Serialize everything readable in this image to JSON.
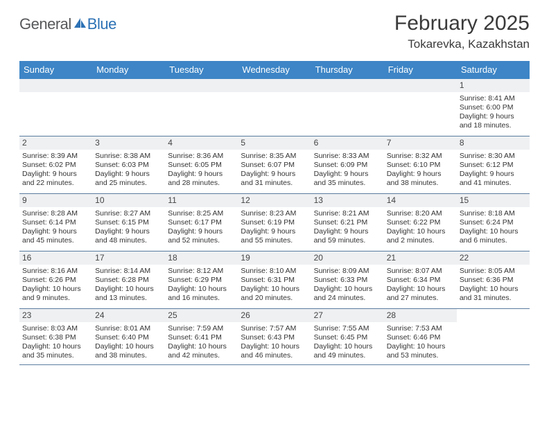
{
  "logo": {
    "general": "General",
    "blue": "Blue"
  },
  "header": {
    "month_title": "February 2025",
    "location": "Tokarevka, Kazakhstan"
  },
  "colors": {
    "head_bg": "#3d85c6",
    "head_fg": "#ffffff",
    "rule": "#5a7ca0",
    "daynum_bg": "#eef0f2",
    "logo_gray": "#57585a",
    "logo_blue": "#2d72b5"
  },
  "daynames": [
    "Sunday",
    "Monday",
    "Tuesday",
    "Wednesday",
    "Thursday",
    "Friday",
    "Saturday"
  ],
  "weeks": [
    [
      null,
      null,
      null,
      null,
      null,
      null,
      {
        "n": "1",
        "sunrise": "Sunrise: 8:41 AM",
        "sunset": "Sunset: 6:00 PM",
        "daylight": "Daylight: 9 hours and 18 minutes."
      }
    ],
    [
      {
        "n": "2",
        "sunrise": "Sunrise: 8:39 AM",
        "sunset": "Sunset: 6:02 PM",
        "daylight": "Daylight: 9 hours and 22 minutes."
      },
      {
        "n": "3",
        "sunrise": "Sunrise: 8:38 AM",
        "sunset": "Sunset: 6:03 PM",
        "daylight": "Daylight: 9 hours and 25 minutes."
      },
      {
        "n": "4",
        "sunrise": "Sunrise: 8:36 AM",
        "sunset": "Sunset: 6:05 PM",
        "daylight": "Daylight: 9 hours and 28 minutes."
      },
      {
        "n": "5",
        "sunrise": "Sunrise: 8:35 AM",
        "sunset": "Sunset: 6:07 PM",
        "daylight": "Daylight: 9 hours and 31 minutes."
      },
      {
        "n": "6",
        "sunrise": "Sunrise: 8:33 AM",
        "sunset": "Sunset: 6:09 PM",
        "daylight": "Daylight: 9 hours and 35 minutes."
      },
      {
        "n": "7",
        "sunrise": "Sunrise: 8:32 AM",
        "sunset": "Sunset: 6:10 PM",
        "daylight": "Daylight: 9 hours and 38 minutes."
      },
      {
        "n": "8",
        "sunrise": "Sunrise: 8:30 AM",
        "sunset": "Sunset: 6:12 PM",
        "daylight": "Daylight: 9 hours and 41 minutes."
      }
    ],
    [
      {
        "n": "9",
        "sunrise": "Sunrise: 8:28 AM",
        "sunset": "Sunset: 6:14 PM",
        "daylight": "Daylight: 9 hours and 45 minutes."
      },
      {
        "n": "10",
        "sunrise": "Sunrise: 8:27 AM",
        "sunset": "Sunset: 6:15 PM",
        "daylight": "Daylight: 9 hours and 48 minutes."
      },
      {
        "n": "11",
        "sunrise": "Sunrise: 8:25 AM",
        "sunset": "Sunset: 6:17 PM",
        "daylight": "Daylight: 9 hours and 52 minutes."
      },
      {
        "n": "12",
        "sunrise": "Sunrise: 8:23 AM",
        "sunset": "Sunset: 6:19 PM",
        "daylight": "Daylight: 9 hours and 55 minutes."
      },
      {
        "n": "13",
        "sunrise": "Sunrise: 8:21 AM",
        "sunset": "Sunset: 6:21 PM",
        "daylight": "Daylight: 9 hours and 59 minutes."
      },
      {
        "n": "14",
        "sunrise": "Sunrise: 8:20 AM",
        "sunset": "Sunset: 6:22 PM",
        "daylight": "Daylight: 10 hours and 2 minutes."
      },
      {
        "n": "15",
        "sunrise": "Sunrise: 8:18 AM",
        "sunset": "Sunset: 6:24 PM",
        "daylight": "Daylight: 10 hours and 6 minutes."
      }
    ],
    [
      {
        "n": "16",
        "sunrise": "Sunrise: 8:16 AM",
        "sunset": "Sunset: 6:26 PM",
        "daylight": "Daylight: 10 hours and 9 minutes."
      },
      {
        "n": "17",
        "sunrise": "Sunrise: 8:14 AM",
        "sunset": "Sunset: 6:28 PM",
        "daylight": "Daylight: 10 hours and 13 minutes."
      },
      {
        "n": "18",
        "sunrise": "Sunrise: 8:12 AM",
        "sunset": "Sunset: 6:29 PM",
        "daylight": "Daylight: 10 hours and 16 minutes."
      },
      {
        "n": "19",
        "sunrise": "Sunrise: 8:10 AM",
        "sunset": "Sunset: 6:31 PM",
        "daylight": "Daylight: 10 hours and 20 minutes."
      },
      {
        "n": "20",
        "sunrise": "Sunrise: 8:09 AM",
        "sunset": "Sunset: 6:33 PM",
        "daylight": "Daylight: 10 hours and 24 minutes."
      },
      {
        "n": "21",
        "sunrise": "Sunrise: 8:07 AM",
        "sunset": "Sunset: 6:34 PM",
        "daylight": "Daylight: 10 hours and 27 minutes."
      },
      {
        "n": "22",
        "sunrise": "Sunrise: 8:05 AM",
        "sunset": "Sunset: 6:36 PM",
        "daylight": "Daylight: 10 hours and 31 minutes."
      }
    ],
    [
      {
        "n": "23",
        "sunrise": "Sunrise: 8:03 AM",
        "sunset": "Sunset: 6:38 PM",
        "daylight": "Daylight: 10 hours and 35 minutes."
      },
      {
        "n": "24",
        "sunrise": "Sunrise: 8:01 AM",
        "sunset": "Sunset: 6:40 PM",
        "daylight": "Daylight: 10 hours and 38 minutes."
      },
      {
        "n": "25",
        "sunrise": "Sunrise: 7:59 AM",
        "sunset": "Sunset: 6:41 PM",
        "daylight": "Daylight: 10 hours and 42 minutes."
      },
      {
        "n": "26",
        "sunrise": "Sunrise: 7:57 AM",
        "sunset": "Sunset: 6:43 PM",
        "daylight": "Daylight: 10 hours and 46 minutes."
      },
      {
        "n": "27",
        "sunrise": "Sunrise: 7:55 AM",
        "sunset": "Sunset: 6:45 PM",
        "daylight": "Daylight: 10 hours and 49 minutes."
      },
      {
        "n": "28",
        "sunrise": "Sunrise: 7:53 AM",
        "sunset": "Sunset: 6:46 PM",
        "daylight": "Daylight: 10 hours and 53 minutes."
      },
      null
    ]
  ]
}
